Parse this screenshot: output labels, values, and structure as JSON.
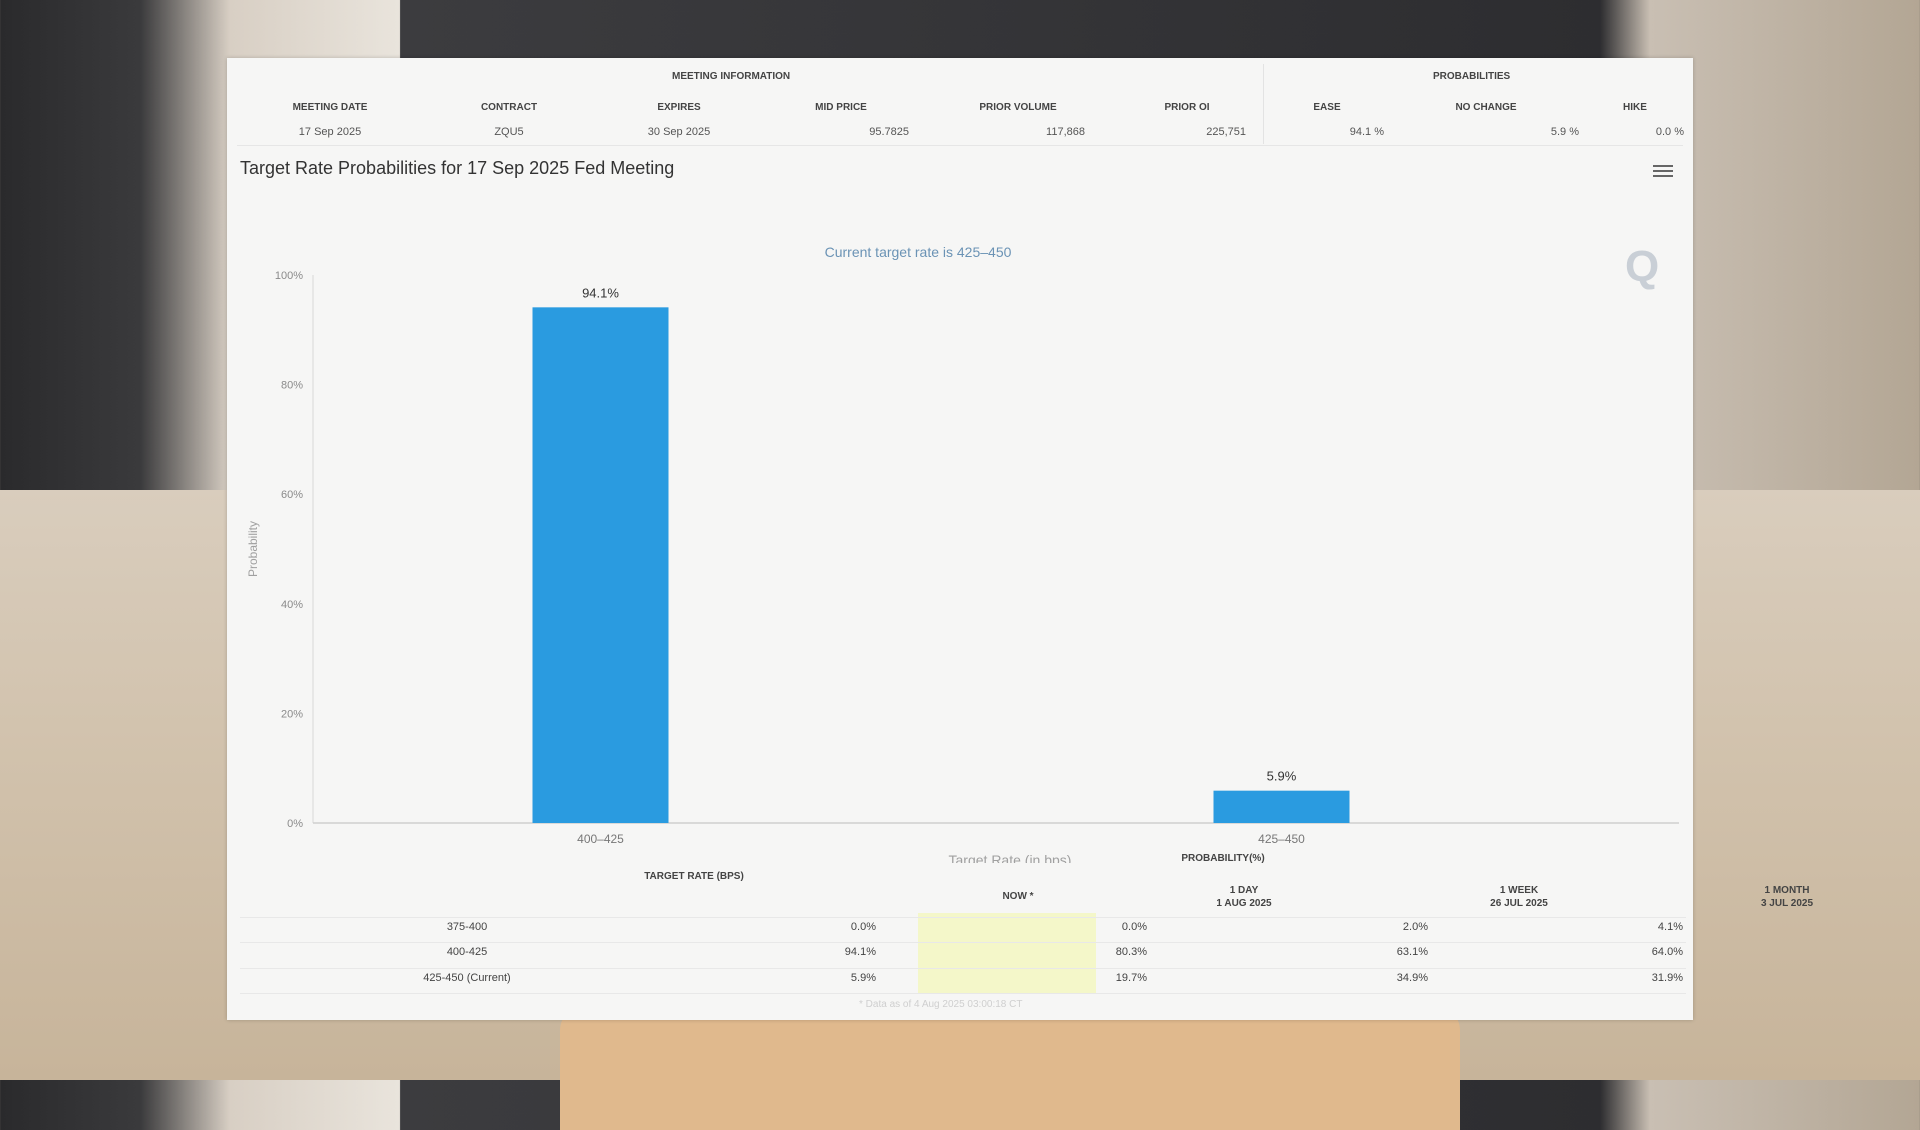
{
  "meeting_info": {
    "group_title": "MEETING INFORMATION",
    "headers": [
      "MEETING DATE",
      "CONTRACT",
      "EXPIRES",
      "MID PRICE",
      "PRIOR VOLUME",
      "PRIOR OI"
    ],
    "values": [
      "17 Sep 2025",
      "ZQU5",
      "30 Sep 2025",
      "95.7825",
      "117,868",
      "225,751"
    ]
  },
  "probabilities": {
    "group_title": "PROBABILITIES",
    "headers": [
      "EASE",
      "NO CHANGE",
      "HIKE"
    ],
    "values": [
      "94.1 %",
      "5.9 %",
      "0.0 %"
    ]
  },
  "chart_data": {
    "type": "bar",
    "title": "Target Rate Probabilities for 17 Sep 2025 Fed Meeting",
    "subtitle": "Current target rate is 425–450",
    "xlabel": "Target Rate (in bps)",
    "ylabel": "Probability",
    "categories": [
      "400–425",
      "425–450"
    ],
    "values": [
      94.1,
      5.9
    ],
    "data_labels": [
      "94.1%",
      "5.9%"
    ],
    "ylim": [
      0,
      100
    ],
    "yticks": [
      "0%",
      "20%",
      "40%",
      "60%",
      "80%",
      "100%"
    ],
    "grid": false,
    "bar_color": "#2a9be0"
  },
  "bottom_table": {
    "target_header": "TARGET RATE (BPS)",
    "group_header": "PROBABILITY(%)",
    "col_now": "NOW *",
    "col_1day": [
      "1 DAY",
      "1 AUG 2025"
    ],
    "col_1week": [
      "1 WEEK",
      "26 JUL 2025"
    ],
    "col_1month": [
      "1 MONTH",
      "3 JUL 2025"
    ],
    "rows": [
      {
        "rate": "375-400",
        "now": "0.0%",
        "day": "0.0%",
        "week": "2.0%",
        "month": "4.1%"
      },
      {
        "rate": "400-425",
        "now": "94.1%",
        "day": "80.3%",
        "week": "63.1%",
        "month": "64.0%"
      },
      {
        "rate": "425-450 (Current)",
        "now": "5.9%",
        "day": "19.7%",
        "week": "34.9%",
        "month": "31.9%"
      }
    ],
    "footnote": "* Data as of 4 Aug 2025 03:00:18 CT"
  }
}
